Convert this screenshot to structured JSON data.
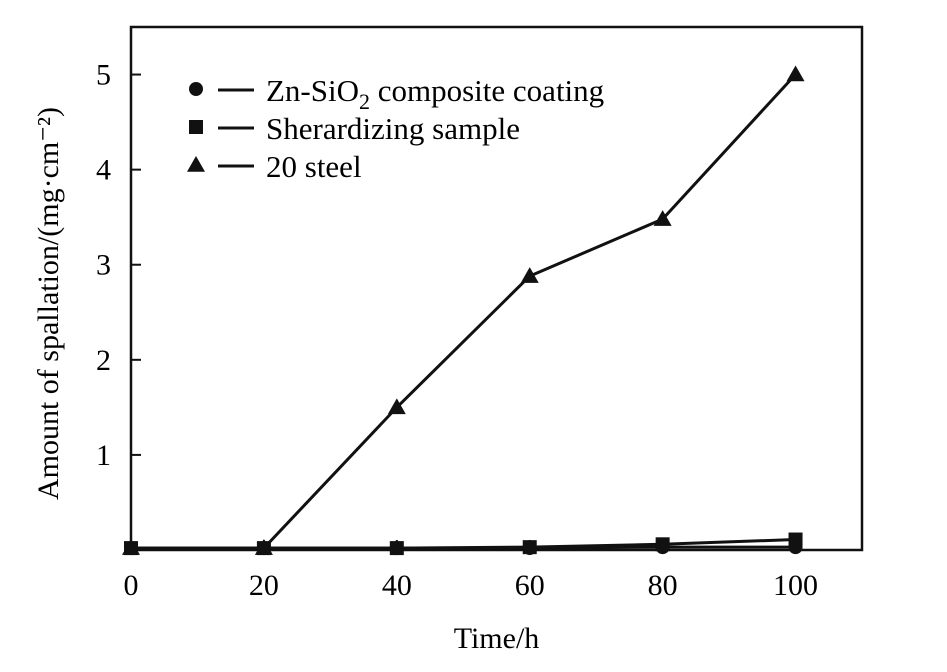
{
  "chart_data": {
    "type": "line",
    "xlabel": "Time/h",
    "ylabel": "Amount of spallation/(mg·cm⁻²)",
    "xlim": [
      0,
      110
    ],
    "ylim": [
      0,
      5.5
    ],
    "xticks": [
      0,
      20,
      40,
      60,
      80,
      100
    ],
    "xtick_labels": [
      "0",
      "20",
      "40",
      "60",
      "80",
      "100"
    ],
    "yticks": [
      1,
      2,
      3,
      4,
      5
    ],
    "ytick_labels": [
      "1",
      "2",
      "3",
      "4",
      "5"
    ],
    "grid": false,
    "legend_position": "top-left",
    "series": [
      {
        "name": "Zn-SiO2 composite coating",
        "marker": "circle",
        "x": [
          0,
          20,
          40,
          60,
          80,
          100
        ],
        "y": [
          0.02,
          0.02,
          0.02,
          0.02,
          0.03,
          0.03
        ]
      },
      {
        "name": "Sherardizing sample",
        "marker": "square",
        "x": [
          0,
          20,
          40,
          60,
          80,
          100
        ],
        "y": [
          0.02,
          0.02,
          0.02,
          0.03,
          0.06,
          0.11
        ]
      },
      {
        "name": "20 steel",
        "marker": "triangle",
        "x": [
          0,
          20,
          40,
          60,
          80,
          100
        ],
        "y": [
          0.02,
          0.02,
          1.5,
          2.88,
          3.48,
          5.0
        ]
      }
    ],
    "legend": {
      "entries": [
        {
          "marker": "circle",
          "prefix": "Zn-SiO",
          "subscript": "2",
          "suffix": " composite coating"
        },
        {
          "marker": "square",
          "prefix": "Sherardizing sample",
          "subscript": "",
          "suffix": ""
        },
        {
          "marker": "triangle",
          "prefix": "20 steel",
          "subscript": "",
          "suffix": ""
        }
      ]
    },
    "line_color": "#111111"
  }
}
